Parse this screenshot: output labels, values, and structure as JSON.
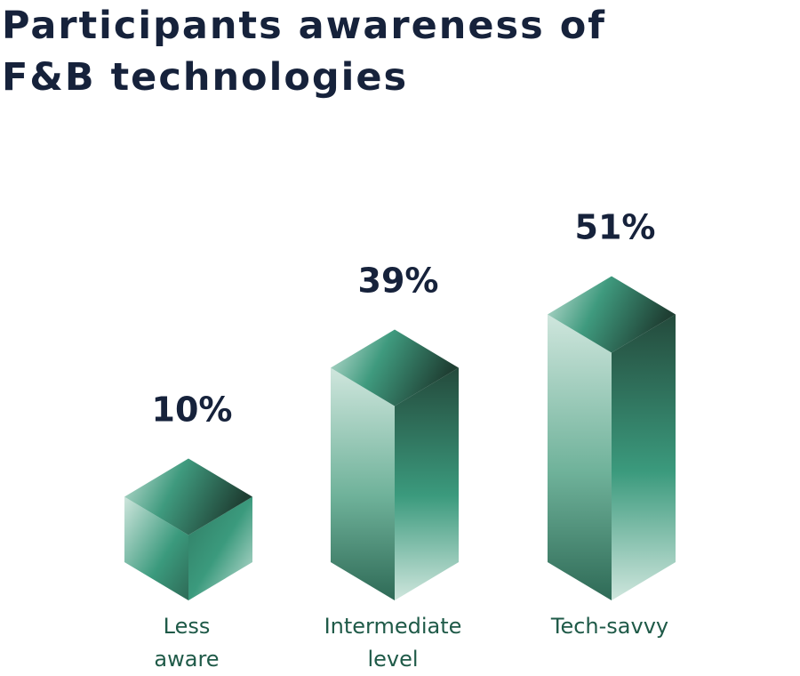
{
  "chart_data": {
    "type": "bar",
    "title_lines": [
      "Participants awareness of",
      "F&B technologies"
    ],
    "categories": [
      [
        "Less",
        "aware"
      ],
      [
        "Intermediate",
        "level"
      ],
      [
        "Tech-savvy"
      ]
    ],
    "values": [
      10,
      39,
      51
    ],
    "value_suffix": "%",
    "ylim": [
      0,
      60
    ],
    "grid": false,
    "legend": false
  },
  "colors": {
    "title": "#16223b",
    "category_label": "#1f5a48",
    "green_light": "#cfe6dd",
    "green_mid": "#3b9a7d",
    "green_dark": "#244a3c"
  }
}
